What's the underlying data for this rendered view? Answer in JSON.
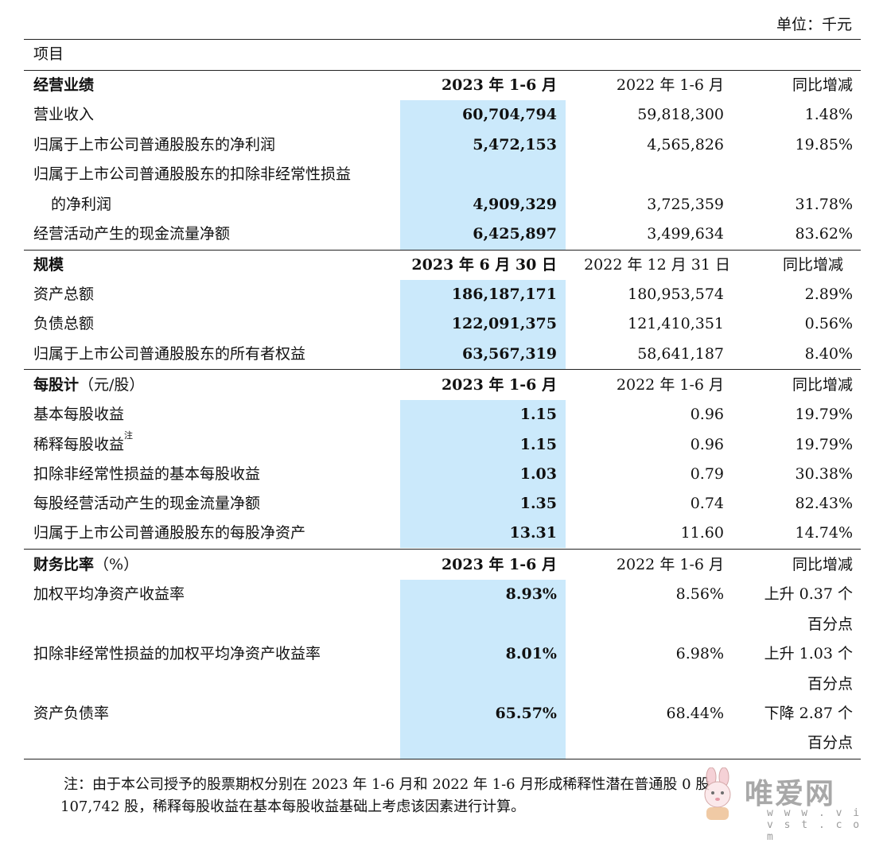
{
  "unit_label": "单位：千元",
  "column_header": "项目",
  "sections": [
    {
      "title": "经营业绩",
      "title_suffix": "",
      "col1": "2023 年 1-6 月",
      "col2": "2022 年 1-6 月",
      "col3": "同比增减",
      "rows": [
        {
          "label": "营业收入",
          "v1": "60,704,794",
          "v2": "59,818,300",
          "v3": "1.48%"
        },
        {
          "label": "归属于上市公司普通股股东的净利润",
          "v1": "5,472,153",
          "v2": "4,565,826",
          "v3": "19.85%"
        },
        {
          "label": "归属于上市公司普通股股东的扣除非经常性损益",
          "label2": "的净利润",
          "v1": "4,909,329",
          "v2": "3,725,359",
          "v3": "31.78%"
        },
        {
          "label": "经营活动产生的现金流量净额",
          "v1": "6,425,897",
          "v2": "3,499,634",
          "v3": "83.62%"
        }
      ]
    },
    {
      "title": "规模",
      "title_suffix": "",
      "col1": "2023 年 6 月 30 日",
      "col2": "2022 年 12 月 31 日",
      "col3": "同比增减",
      "rows": [
        {
          "label": "资产总额",
          "v1": "186,187,171",
          "v2": "180,953,574",
          "v3": "2.89%"
        },
        {
          "label": "负债总额",
          "v1": "122,091,375",
          "v2": "121,410,351",
          "v3": "0.56%"
        },
        {
          "label": "归属于上市公司普通股股东的所有者权益",
          "v1": "63,567,319",
          "v2": "58,641,187",
          "v3": "8.40%"
        }
      ]
    },
    {
      "title": "每股计",
      "title_suffix": "（元/股）",
      "col1": "2023 年 1-6 月",
      "col2": "2022 年 1-6 月",
      "col3": "同比增减",
      "rows": [
        {
          "label": "基本每股收益",
          "v1": "1.15",
          "v2": "0.96",
          "v3": "19.79%"
        },
        {
          "label": "稀释每股收益",
          "sup": "注",
          "v1": "1.15",
          "v2": "0.96",
          "v3": "19.79%"
        },
        {
          "label": "扣除非经常性损益的基本每股收益",
          "v1": "1.03",
          "v2": "0.79",
          "v3": "30.38%"
        },
        {
          "label": "每股经营活动产生的现金流量净额",
          "v1": "1.35",
          "v2": "0.74",
          "v3": "82.43%"
        },
        {
          "label": "归属于上市公司普通股股东的每股净资产",
          "v1": "13.31",
          "v2": "11.60",
          "v3": "14.74%"
        }
      ]
    },
    {
      "title": "财务比率",
      "title_suffix": "（%）",
      "col1": "2023 年 1-6 月",
      "col2": "2022 年 1-6 月",
      "col3": "同比增减",
      "rows": [
        {
          "label": "加权平均净资产收益率",
          "v1": "8.93%",
          "v2": "8.56%",
          "v3": "上升 0.37 个",
          "v3b": "百分点"
        },
        {
          "label": "扣除非经常性损益的加权平均净资产收益率",
          "v1": "8.01%",
          "v2": "6.98%",
          "v3": "上升 1.03 个",
          "v3b": "百分点"
        },
        {
          "label": "资产负债率",
          "v1": "65.57%",
          "v2": "68.44%",
          "v3": "下降 2.87 个",
          "v3b": "百分点"
        }
      ]
    }
  ],
  "note_line1": "注：由于本公司授予的股票期权分别在 2023 年 1-6 月和 2022 年 1-6 月形成稀释性潜在普通股 0 股",
  "note_line2": "107,742 股，稀释每股收益在基本每股收益基础上考虑该因素进行计算。",
  "watermark": {
    "text": "唯爱网",
    "url": "w w w . v i v s t . c o m",
    "icon": "rabbit-logo-icon"
  }
}
